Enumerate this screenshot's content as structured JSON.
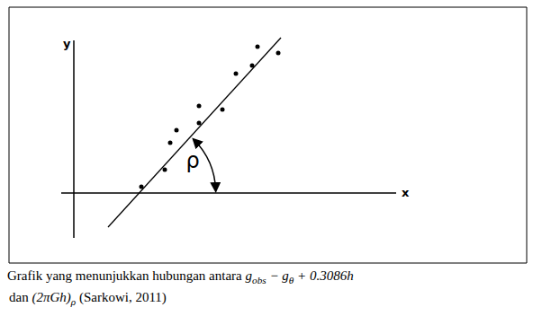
{
  "chart_data": {
    "type": "scatter",
    "x_label": "x",
    "y_label": "y",
    "x": [
      3.75,
      5.05,
      5.35,
      5.7,
      6.95,
      6.95,
      8.25,
      9.0,
      9.9,
      10.2,
      11.35
    ],
    "values": [
      0.35,
      1.3,
      2.8,
      3.5,
      3.9,
      4.85,
      4.65,
      6.65,
      7.1,
      8.15,
      7.8
    ],
    "color": "#000000",
    "marker": "circle",
    "line": {
      "x": [
        1.9,
        11.5
      ],
      "y": [
        -1.9,
        8.65
      ],
      "color": "#000000"
    },
    "xlim": [
      -3.6,
      25.15
    ],
    "ylim": [
      -3.9,
      10.35
    ],
    "xticks": [],
    "yticks": [],
    "tick_labels": false,
    "x_axis_line": [
      -0.7,
      17.9
    ],
    "y_axis_line": [
      -2.5,
      8.5
    ],
    "annotation": {
      "text": "ρ",
      "x": 3.63,
      "y": 0
    }
  },
  "caption": {
    "line1": "Grafik yang menunjukkan hubungan antara",
    "expr1": [
      [
        "g",
        "obs"
      ],
      [
        " − g",
        "θ"
      ],
      [
        " + 0.3086h",
        ""
      ]
    ],
    "line2": "dan",
    "expr2": [
      [
        "(2πGh)",
        "ρ"
      ]
    ],
    "source": "(Sarkowi, 2011)"
  }
}
